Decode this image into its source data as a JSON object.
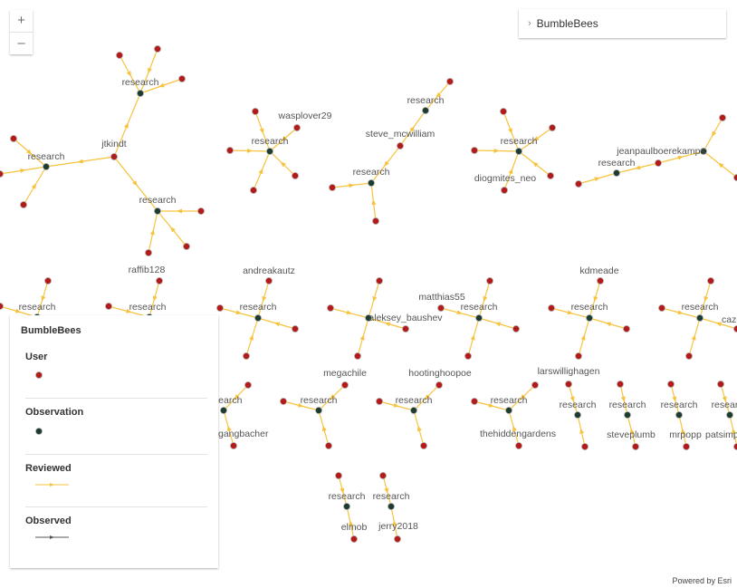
{
  "map_controls": {
    "zoom_in": "+",
    "zoom_out": "–"
  },
  "layer_panel": {
    "icon": "chevron-right-icon",
    "label": "BumbleBees"
  },
  "legend": {
    "title": "BumbleBees",
    "items": [
      {
        "label": "User",
        "symbol": "circle",
        "color": "#b31b1b"
      },
      {
        "label": "Observation",
        "symbol": "circle",
        "color": "#1d3b2f"
      },
      {
        "label": "Reviewed",
        "symbol": "line-arrow",
        "color": "#f7c33d"
      },
      {
        "label": "Observed",
        "symbol": "line-arrow",
        "color": "#555555"
      }
    ]
  },
  "graph": {
    "observation_label": "research",
    "user_labels": [
      "jtkindt",
      "wasplover29",
      "steve_mcwilliam",
      "diogmites_neo",
      "jeanpaulboerekamps",
      "raffib128",
      "andreakautz",
      "aleksey_baushev",
      "matthias55",
      "kdmeade",
      "caze",
      "gangbacher",
      "megachile",
      "hootinghoopoe",
      "thehiddengardens",
      "larswillighagen",
      "steveplumb",
      "mrpopp",
      "patsimps",
      "elmob",
      "jerry2018"
    ],
    "colors": {
      "user": "#b31b1b",
      "observation": "#1d3b2f",
      "reviewed_edge": "#f7c33d"
    }
  },
  "attribution": "Powered by Esri"
}
